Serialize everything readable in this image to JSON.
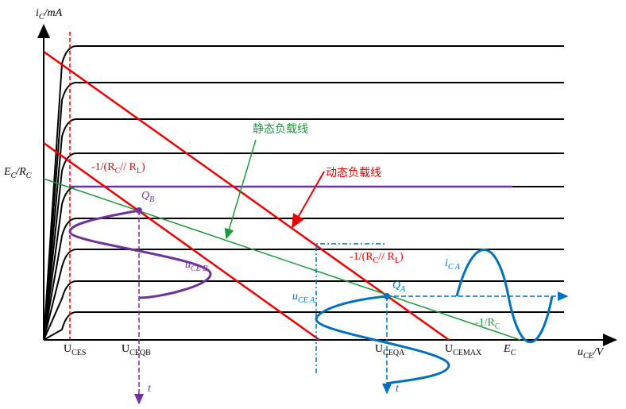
{
  "labels": {
    "y_axis": [
      "i",
      "C",
      "/mA"
    ],
    "x_axis": [
      "u",
      "CE",
      "/V"
    ],
    "ec_rc": [
      "E",
      "C",
      "/R",
      "C"
    ],
    "dynamic_slope_1": [
      "-1/(R",
      "C",
      "// R",
      "L",
      ")"
    ],
    "dynamic_slope_2": [
      "-1/(R",
      "C",
      "// R",
      "L",
      ")"
    ],
    "static_load_line": [
      "静态负载线"
    ],
    "dynamic_load_line": [
      "动态负载线"
    ],
    "q_b": [
      "Q",
      "B"
    ],
    "q_a": [
      "Q",
      "A"
    ],
    "u_ce_b": [
      "u",
      "CE B"
    ],
    "u_ce_a": [
      "u",
      "CE A"
    ],
    "i_c_a": [
      "i",
      "C A"
    ],
    "static_slope": [
      "-1/R",
      "C"
    ],
    "u_ces": [
      "U",
      "CES"
    ],
    "u_ceqb": [
      "U",
      "CEQB"
    ],
    "u_ceqa": [
      "U",
      "CEQA"
    ],
    "u_cemax": [
      "U",
      "CEMAX"
    ],
    "e_c": [
      "E",
      "C"
    ],
    "t_b": [
      "t"
    ],
    "t_a": [
      "t"
    ]
  }
}
